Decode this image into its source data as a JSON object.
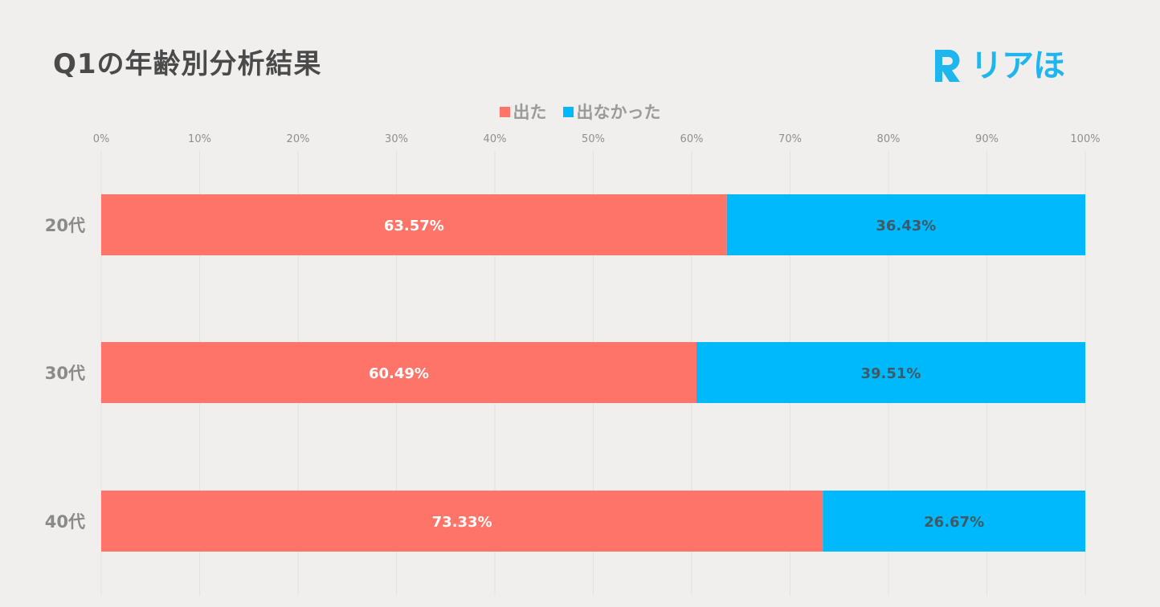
{
  "header": {
    "title": "Q1の年齢別分析結果",
    "logo_text": "リアほ",
    "logo_mark": "R",
    "logo_color": "#1eb6ec"
  },
  "chart_data": {
    "type": "bar",
    "orientation": "horizontal",
    "stacked": true,
    "categories": [
      "20代",
      "30代",
      "40代"
    ],
    "series": [
      {
        "name": "出た",
        "color": "#ff7468",
        "values": [
          63.57,
          60.49,
          73.33
        ],
        "labels": [
          "63.57%",
          "60.49%",
          "73.33%"
        ],
        "label_color": "#ffffff"
      },
      {
        "name": "出なかった",
        "color": "#00b9fc",
        "values": [
          36.43,
          39.51,
          26.67
        ],
        "labels": [
          "36.43%",
          "39.51%",
          "26.67%"
        ],
        "label_color": "#3e5a66"
      }
    ],
    "xlim": [
      0,
      100
    ],
    "xticks": [
      0,
      10,
      20,
      30,
      40,
      50,
      60,
      70,
      80,
      90,
      100
    ],
    "xtick_labels": [
      "0%",
      "10%",
      "20%",
      "30%",
      "40%",
      "50%",
      "60%",
      "70%",
      "80%",
      "90%",
      "100%"
    ],
    "title": "Q1の年齢別分析結果",
    "grid": true,
    "legend_position": "top-center",
    "axis_position": "top"
  }
}
